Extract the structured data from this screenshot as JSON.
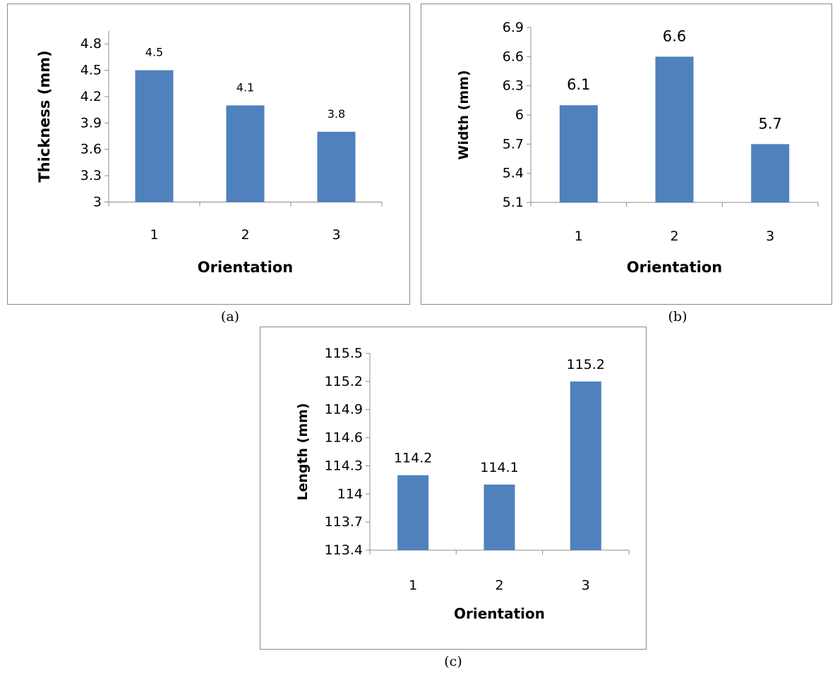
{
  "bar_color": "#4F81BD",
  "chart_data": [
    {
      "type": "bar",
      "caption": "(a)",
      "categories": [
        "1",
        "2",
        "3"
      ],
      "values": [
        4.5,
        4.1,
        3.8
      ],
      "data_labels": [
        "4.5",
        "4.1",
        "3.8"
      ],
      "xlabel": "Orientation",
      "ylabel": "Thickness (mm)",
      "ylim": [
        3,
        4.95
      ],
      "yticks": [
        3,
        3.3,
        3.6,
        3.9,
        4.2,
        4.5,
        4.8
      ],
      "ytick_labels": [
        "3",
        "3.3",
        "3.6",
        "3.9",
        "4.2",
        "4.5",
        "4.8"
      ],
      "grid": false,
      "legend": "none"
    },
    {
      "type": "bar",
      "caption": "(b)",
      "categories": [
        "1",
        "2",
        "3"
      ],
      "values": [
        6.1,
        6.6,
        5.7
      ],
      "data_labels": [
        "6.1",
        "6.6",
        "5.7"
      ],
      "xlabel": "Orientation",
      "ylabel": "Width (mm)",
      "ylim": [
        5.1,
        6.9
      ],
      "yticks": [
        5.1,
        5.4,
        5.7,
        6,
        6.3,
        6.6,
        6.9
      ],
      "ytick_labels": [
        "5.1",
        "5.4",
        "5.7",
        "6",
        "6.3",
        "6.6",
        "6.9"
      ],
      "grid": false,
      "legend": "none"
    },
    {
      "type": "bar",
      "caption": "(c)",
      "categories": [
        "1",
        "2",
        "3"
      ],
      "values": [
        114.2,
        114.1,
        115.2
      ],
      "data_labels": [
        "114.2",
        "114.1",
        "115.2"
      ],
      "xlabel": "Orientation",
      "ylabel": "Length (mm)",
      "ylim": [
        113.4,
        115.5
      ],
      "yticks": [
        113.4,
        113.7,
        114,
        114.3,
        114.6,
        114.9,
        115.2,
        115.5
      ],
      "ytick_labels": [
        "113.4",
        "113.7",
        "114",
        "114.3",
        "114.6",
        "114.9",
        "115.2",
        "115.5"
      ],
      "grid": false,
      "legend": "none"
    }
  ]
}
